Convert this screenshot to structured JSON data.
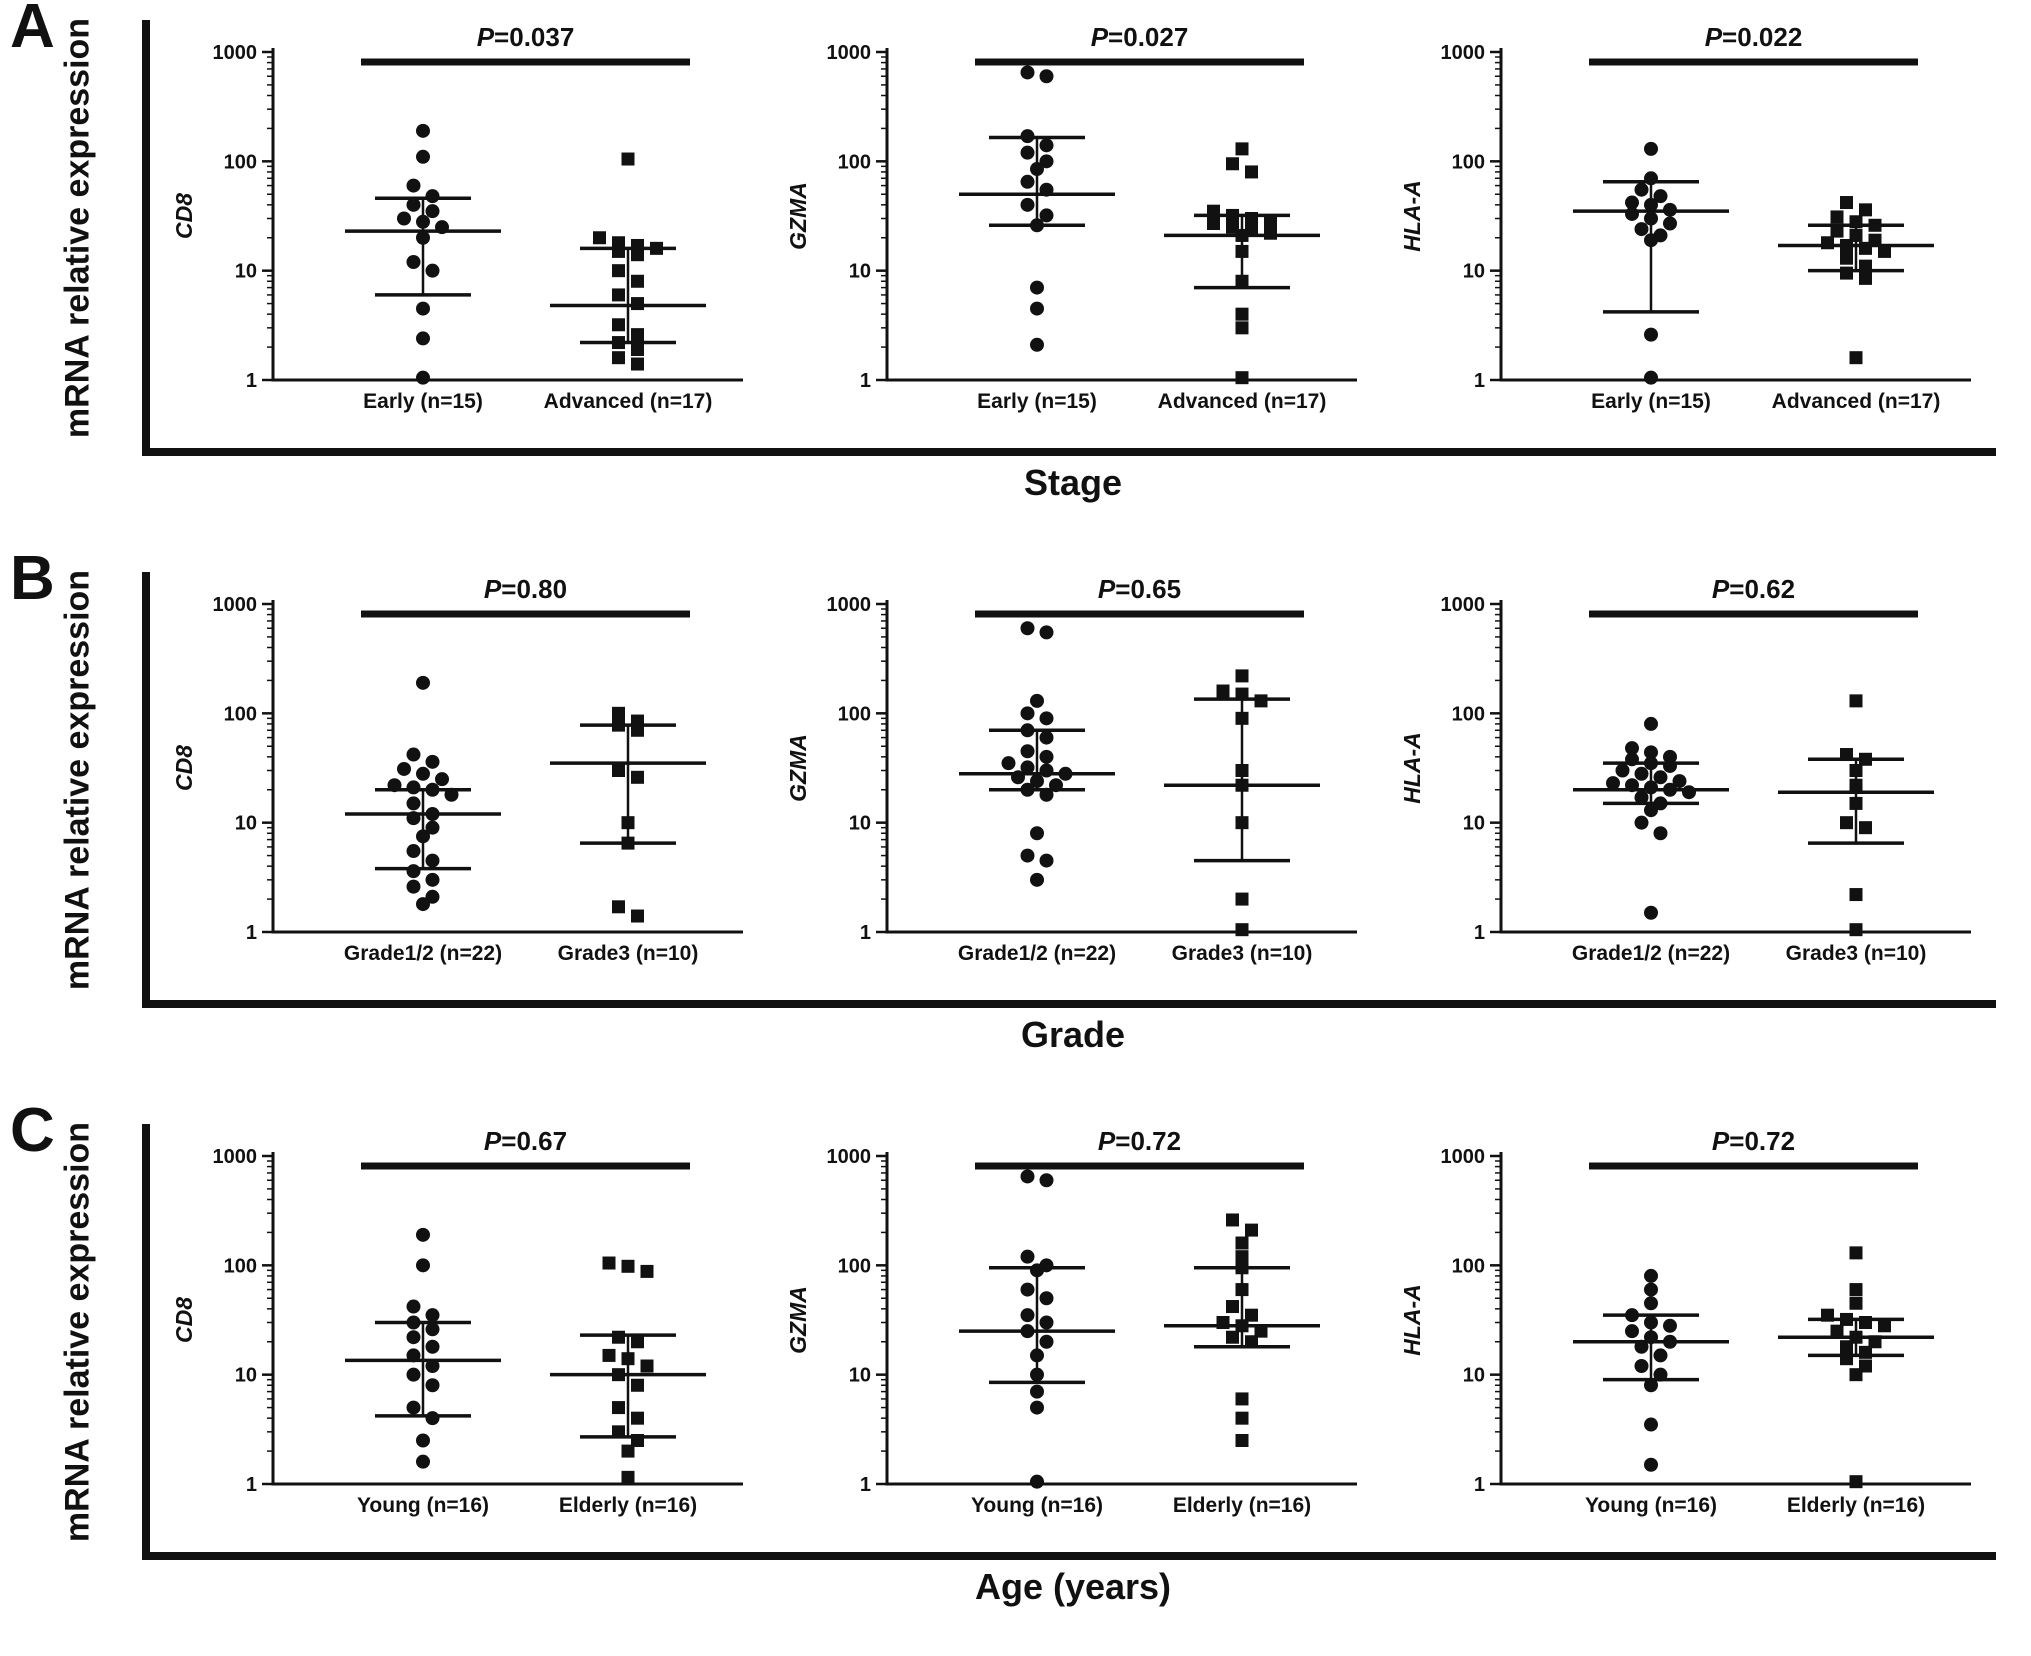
{
  "figure": {
    "y_axis_label": "mRNA relative expression",
    "panels": [
      {
        "label": "A",
        "x_axis_label": "Stage"
      },
      {
        "label": "B",
        "x_axis_label": "Grade"
      },
      {
        "label": "C",
        "x_axis_label": "Age (years)"
      }
    ],
    "colors": {
      "ink": "#111111",
      "background": "#ffffff"
    }
  },
  "chart_data": [
    {
      "type": "scatter",
      "panel": "A",
      "gene": "CD8",
      "p_label": "P=0.037",
      "log_scale": true,
      "ylim": [
        1,
        1000
      ],
      "yticks": [
        1,
        10,
        100,
        1000
      ],
      "categories": [
        "Early (n=15)",
        "Advanced (n=17)"
      ],
      "series": [
        {
          "name": "Early (n=15)",
          "marker": "circle",
          "median": 23,
          "whisker_low": 6,
          "whisker_high": 46,
          "values": [
            190,
            110,
            60,
            48,
            40,
            35,
            30,
            28,
            25,
            20,
            12,
            10,
            4.5,
            2.4,
            1.05
          ]
        },
        {
          "name": "Advanced (n=17)",
          "marker": "square",
          "median": 4.8,
          "whisker_low": 2.2,
          "whisker_high": 16,
          "values": [
            105,
            20,
            18,
            17,
            16,
            15,
            14,
            10,
            8,
            6,
            5,
            3.2,
            2.6,
            2.2,
            1.9,
            1.6,
            1.4
          ]
        }
      ]
    },
    {
      "type": "scatter",
      "panel": "A",
      "gene": "GZMA",
      "p_label": "P=0.027",
      "log_scale": true,
      "ylim": [
        1,
        1000
      ],
      "yticks": [
        1,
        10,
        100,
        1000
      ],
      "categories": [
        "Early (n=15)",
        "Advanced (n=17)"
      ],
      "series": [
        {
          "name": "Early (n=15)",
          "marker": "circle",
          "median": 50,
          "whisker_low": 26,
          "whisker_high": 165,
          "values": [
            650,
            600,
            170,
            140,
            120,
            100,
            85,
            65,
            55,
            40,
            32,
            26,
            7,
            4.5,
            2.1
          ]
        },
        {
          "name": "Advanced (n=17)",
          "marker": "square",
          "median": 21,
          "whisker_low": 7,
          "whisker_high": 32,
          "values": [
            130,
            95,
            80,
            35,
            32,
            30,
            28,
            27,
            25,
            24,
            22,
            21,
            15,
            8,
            4,
            3,
            1.05
          ]
        }
      ]
    },
    {
      "type": "scatter",
      "panel": "A",
      "gene": "HLA-A",
      "p_label": "P=0.022",
      "log_scale": true,
      "ylim": [
        1,
        1000
      ],
      "yticks": [
        1,
        10,
        100,
        1000
      ],
      "categories": [
        "Early (n=15)",
        "Advanced (n=17)"
      ],
      "series": [
        {
          "name": "Early (n=15)",
          "marker": "circle",
          "median": 35,
          "whisker_low": 4.2,
          "whisker_high": 65,
          "values": [
            130,
            70,
            55,
            48,
            42,
            40,
            36,
            33,
            30,
            27,
            24,
            21,
            19,
            2.6,
            1.05
          ]
        },
        {
          "name": "Advanced (n=17)",
          "marker": "square",
          "median": 17,
          "whisker_low": 10,
          "whisker_high": 26,
          "values": [
            42,
            36,
            31,
            28,
            26,
            23,
            21,
            19,
            18,
            17,
            16,
            15,
            13,
            11,
            9.5,
            8.5,
            1.6
          ]
        }
      ]
    },
    {
      "type": "scatter",
      "panel": "B",
      "gene": "CD8",
      "p_label": "P=0.80",
      "log_scale": true,
      "ylim": [
        1,
        1000
      ],
      "yticks": [
        1,
        10,
        100,
        1000
      ],
      "categories": [
        "Grade1/2 (n=22)",
        "Grade3 (n=10)"
      ],
      "series": [
        {
          "name": "Grade1/2 (n=22)",
          "marker": "circle",
          "median": 12,
          "whisker_low": 3.8,
          "whisker_high": 20,
          "values": [
            190,
            42,
            36,
            31,
            28,
            25,
            22,
            21,
            20,
            18,
            15,
            12,
            11,
            9,
            7.5,
            5.5,
            4.5,
            3.6,
            3,
            2.6,
            2.1,
            1.8
          ]
        },
        {
          "name": "Grade3 (n=10)",
          "marker": "square",
          "median": 35,
          "whisker_low": 6.5,
          "whisker_high": 78,
          "values": [
            100,
            85,
            78,
            70,
            30,
            26,
            10,
            6.5,
            1.7,
            1.4
          ]
        }
      ]
    },
    {
      "type": "scatter",
      "panel": "B",
      "gene": "GZMA",
      "p_label": "P=0.65",
      "log_scale": true,
      "ylim": [
        1,
        1000
      ],
      "yticks": [
        1,
        10,
        100,
        1000
      ],
      "categories": [
        "Grade1/2 (n=22)",
        "Grade3 (n=10)"
      ],
      "series": [
        {
          "name": "Grade1/2 (n=22)",
          "marker": "circle",
          "median": 28,
          "whisker_low": 20,
          "whisker_high": 70,
          "values": [
            600,
            550,
            130,
            100,
            90,
            70,
            60,
            45,
            40,
            35,
            32,
            30,
            28,
            26,
            24,
            22,
            20,
            18,
            8,
            5,
            4.5,
            3
          ]
        },
        {
          "name": "Grade3 (n=10)",
          "marker": "square",
          "median": 22,
          "whisker_low": 4.5,
          "whisker_high": 135,
          "values": [
            220,
            160,
            150,
            130,
            90,
            30,
            22,
            10,
            2,
            1.05
          ]
        }
      ]
    },
    {
      "type": "scatter",
      "panel": "B",
      "gene": "HLA-A",
      "p_label": "P=0.62",
      "log_scale": true,
      "ylim": [
        1,
        1000
      ],
      "yticks": [
        1,
        10,
        100,
        1000
      ],
      "categories": [
        "Grade1/2 (n=22)",
        "Grade3 (n=10)"
      ],
      "series": [
        {
          "name": "Grade1/2 (n=22)",
          "marker": "circle",
          "median": 20,
          "whisker_low": 15,
          "whisker_high": 35,
          "values": [
            80,
            48,
            44,
            40,
            38,
            35,
            33,
            30,
            28,
            26,
            24,
            23,
            22,
            21,
            20,
            19,
            17,
            15,
            13,
            10,
            8,
            1.5
          ]
        },
        {
          "name": "Grade3 (n=10)",
          "marker": "square",
          "median": 19,
          "whisker_low": 6.5,
          "whisker_high": 38,
          "values": [
            130,
            42,
            38,
            30,
            22,
            15,
            10,
            9,
            2.2,
            1.05
          ]
        }
      ]
    },
    {
      "type": "scatter",
      "panel": "C",
      "gene": "CD8",
      "p_label": "P=0.67",
      "log_scale": true,
      "ylim": [
        1,
        1000
      ],
      "yticks": [
        1,
        10,
        100,
        1000
      ],
      "categories": [
        "Young (n=16)",
        "Elderly (n=16)"
      ],
      "series": [
        {
          "name": "Young (n=16)",
          "marker": "circle",
          "median": 13.5,
          "whisker_low": 4.2,
          "whisker_high": 30,
          "values": [
            190,
            100,
            42,
            35,
            30,
            26,
            22,
            18,
            15,
            12,
            10,
            8,
            5,
            4,
            2.5,
            1.6
          ]
        },
        {
          "name": "Elderly (n=16)",
          "marker": "square",
          "median": 10,
          "whisker_low": 2.7,
          "whisker_high": 23,
          "values": [
            105,
            98,
            88,
            22,
            20,
            15,
            14,
            12,
            10,
            8,
            5,
            4,
            3,
            2.5,
            2,
            1.15
          ]
        }
      ]
    },
    {
      "type": "scatter",
      "panel": "C",
      "gene": "GZMA",
      "p_label": "P=0.72",
      "log_scale": true,
      "ylim": [
        1,
        1000
      ],
      "yticks": [
        1,
        10,
        100,
        1000
      ],
      "categories": [
        "Young (n=16)",
        "Elderly (n=16)"
      ],
      "series": [
        {
          "name": "Young (n=16)",
          "marker": "circle",
          "median": 25,
          "whisker_low": 8.5,
          "whisker_high": 95,
          "values": [
            650,
            600,
            120,
            100,
            90,
            60,
            50,
            35,
            30,
            25,
            20,
            15,
            10,
            7,
            5,
            1.05
          ]
        },
        {
          "name": "Elderly (n=16)",
          "marker": "square",
          "median": 28,
          "whisker_low": 18,
          "whisker_high": 95,
          "values": [
            260,
            210,
            160,
            120,
            95,
            60,
            42,
            35,
            30,
            28,
            25,
            22,
            20,
            6,
            4,
            2.5
          ]
        }
      ]
    },
    {
      "type": "scatter",
      "panel": "C",
      "gene": "HLA-A",
      "p_label": "P=0.72",
      "log_scale": true,
      "ylim": [
        1,
        1000
      ],
      "yticks": [
        1,
        10,
        100,
        1000
      ],
      "categories": [
        "Young (n=16)",
        "Elderly (n=16)"
      ],
      "series": [
        {
          "name": "Young (n=16)",
          "marker": "circle",
          "median": 20,
          "whisker_low": 9,
          "whisker_high": 35,
          "values": [
            80,
            60,
            45,
            35,
            30,
            28,
            25,
            22,
            20,
            18,
            15,
            12,
            10,
            8,
            3.5,
            1.5
          ]
        },
        {
          "name": "Elderly (n=16)",
          "marker": "square",
          "median": 22,
          "whisker_low": 15,
          "whisker_high": 32,
          "values": [
            130,
            60,
            45,
            35,
            32,
            30,
            28,
            25,
            22,
            20,
            18,
            16,
            14,
            12,
            10,
            1.05
          ]
        }
      ]
    }
  ]
}
